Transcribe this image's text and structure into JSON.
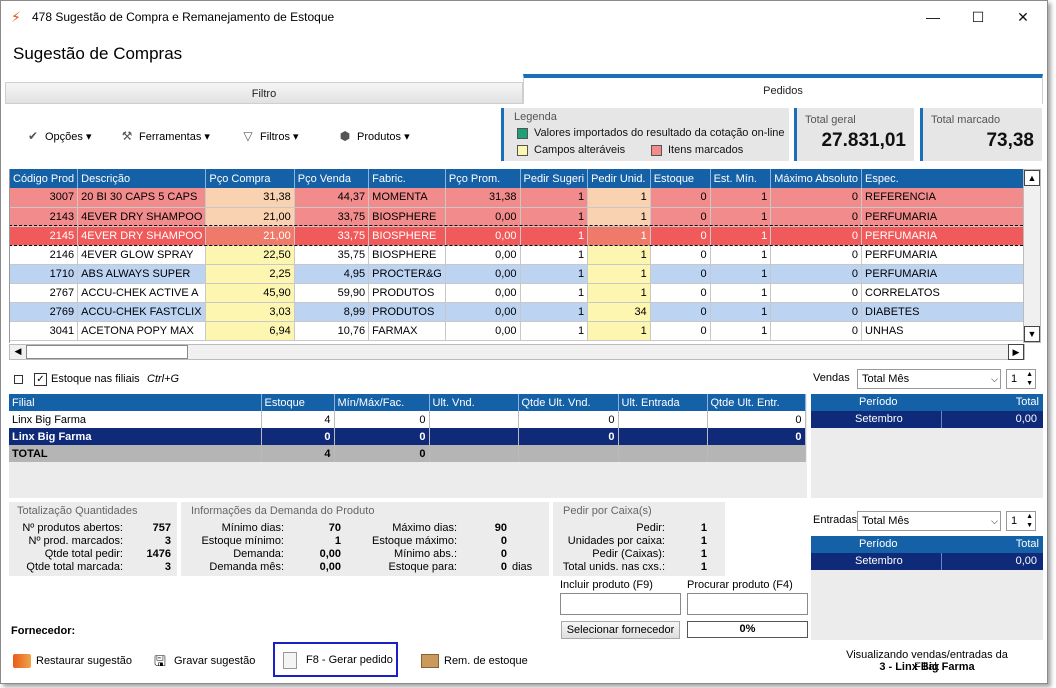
{
  "window": {
    "title": "478 Sugestão de Compra e Remanejamento de Estoque",
    "minimize": "—",
    "maximize": "☐",
    "close": "✕"
  },
  "header": {
    "title": "Sugestão de Compras"
  },
  "tabs": [
    {
      "label": "Filtro"
    },
    {
      "label": "Pedidos"
    }
  ],
  "toolbar": [
    {
      "label": "Opções",
      "icon": "check-icon"
    },
    {
      "label": "Ferramentas",
      "icon": "wrench-icon"
    },
    {
      "label": "Filtros",
      "icon": "funnel-icon"
    },
    {
      "label": "Produtos",
      "icon": "box-icon"
    }
  ],
  "legend": {
    "title": "Legenda",
    "items": [
      {
        "label": "Valores importados do resultado da cotação on-line",
        "color": "#1f9e78"
      },
      {
        "label": "Campos alteráveis",
        "color": "#fdf6b0"
      },
      {
        "label": "Itens marcados",
        "color": "#f28b8b"
      }
    ]
  },
  "totals": {
    "geral_label": "Total geral",
    "geral_value": "27.831,01",
    "marcado_label": "Total marcado",
    "marcado_value": "73,38"
  },
  "grid": {
    "columns": [
      "Código Prod",
      "Descrição",
      "Pço Compra",
      "Pço Venda",
      "Fabric.",
      "Pço Prom.",
      "Pedir Sugeri",
      "Pedir Unid.",
      "Estoque",
      "Est. Mín.",
      "Máximo Absoluto",
      "Espec."
    ],
    "rows": [
      {
        "style": "red",
        "cells": [
          "3007",
          "20 BI 30 CAPS 5 CAPS",
          "31,38",
          "44,37",
          "MOMENTA",
          "31,38",
          "1",
          "1",
          "0",
          "1",
          "0",
          "REFERENCIA"
        ]
      },
      {
        "style": "red",
        "cells": [
          "2143",
          "4EVER DRY SHAMPOO",
          "21,00",
          "33,75",
          "BIOSPHERE",
          "0,00",
          "1",
          "1",
          "0",
          "1",
          "0",
          "PERFUMARIA"
        ]
      },
      {
        "style": "sel",
        "cells": [
          "2145",
          "4EVER DRY SHAMPOO",
          "21,00",
          "33,75",
          "BIOSPHERE",
          "0,00",
          "1",
          "1",
          "0",
          "1",
          "0",
          "PERFUMARIA"
        ]
      },
      {
        "style": "white",
        "cells": [
          "2146",
          "4EVER GLOW SPRAY",
          "22,50",
          "35,75",
          "BIOSPHERE",
          "0,00",
          "1",
          "1",
          "0",
          "1",
          "0",
          "PERFUMARIA"
        ]
      },
      {
        "style": "blue",
        "cells": [
          "1710",
          "ABS ALWAYS SUPER",
          "2,25",
          "4,95",
          "PROCTER&G",
          "0,00",
          "1",
          "1",
          "0",
          "1",
          "0",
          "PERFUMARIA"
        ]
      },
      {
        "style": "white",
        "cells": [
          "2767",
          "ACCU-CHEK ACTIVE A",
          "45,90",
          "59,90",
          "PRODUTOS",
          "0,00",
          "1",
          "1",
          "0",
          "1",
          "0",
          "CORRELATOS"
        ]
      },
      {
        "style": "blue",
        "cells": [
          "2769",
          "ACCU-CHEK FASTCLIX",
          "3,03",
          "8,99",
          "PRODUTOS",
          "0,00",
          "1",
          "34",
          "0",
          "1",
          "0",
          "DIABETES"
        ]
      },
      {
        "style": "white",
        "cells": [
          "3041",
          "ACETONA POPY MAX",
          "6,94",
          "10,76",
          "FARMAX",
          "0,00",
          "1",
          "1",
          "0",
          "1",
          "0",
          "UNHAS"
        ]
      }
    ]
  },
  "options": {
    "estoque_filiais": "Estoque nas filiais",
    "shortcut": "Ctrl+G"
  },
  "filial_grid": {
    "columns": [
      "Filial",
      "Estoque",
      "Mín/Máx/Fac.",
      "Ult. Vnd.",
      "Qtde Ult. Vnd.",
      "Ult. Entrada",
      "Qtde Ult. Entr."
    ],
    "rows": [
      {
        "style": "white",
        "cells": [
          "Linx Big Farma",
          "4",
          "0",
          "",
          "0",
          "",
          "0"
        ]
      },
      {
        "style": "navy",
        "cells": [
          "Linx Big Farma",
          "0",
          "0",
          "",
          "0",
          "",
          "0"
        ]
      },
      {
        "style": "total",
        "cells": [
          "TOTAL",
          "4",
          "0",
          "",
          "",
          "",
          ""
        ]
      }
    ]
  },
  "vendas": {
    "label": "Vendas",
    "combo": "Total Mês",
    "spin": "1",
    "col_periodo": "Período",
    "col_total": "Total",
    "row_periodo": "Setembro",
    "row_total": "0,00"
  },
  "entradas": {
    "label": "Entradas",
    "combo": "Total Mês",
    "spin": "1",
    "col_periodo": "Período",
    "col_total": "Total",
    "row_periodo": "Setembro",
    "row_total": "0,00"
  },
  "totalizacao": {
    "title": "Totalização Quantidades",
    "items": [
      {
        "label": "Nº produtos abertos:",
        "value": "757"
      },
      {
        "label": "Nº prod. marcados:",
        "value": "3"
      },
      {
        "label": "Qtde total pedir:",
        "value": "1476"
      },
      {
        "label": "Qtde total marcada:",
        "value": "3"
      }
    ]
  },
  "demanda": {
    "title": "Informações da Demanda do Produto",
    "left": [
      {
        "label": "Mínimo dias:",
        "value": "70"
      },
      {
        "label": "Estoque mínimo:",
        "value": "1"
      },
      {
        "label": "Demanda:",
        "value": "0,00"
      },
      {
        "label": "Demanda mês:",
        "value": "0,00"
      }
    ],
    "right": [
      {
        "label": "Máximo dias:",
        "value": "90"
      },
      {
        "label": "Estoque máximo:",
        "value": "0"
      },
      {
        "label": "Mínimo abs.:",
        "value": "0"
      },
      {
        "label": "Estoque para:",
        "value": "0"
      }
    ],
    "dias": "dias"
  },
  "caixa": {
    "title": "Pedir por Caixa(s)",
    "items": [
      {
        "label": "Pedir:",
        "value": "1"
      },
      {
        "label": "Unidades por caixa:",
        "value": "1"
      },
      {
        "label": "Pedir (Caixas):",
        "value": "1"
      },
      {
        "label": "Total unids. nas cxs.:",
        "value": "1"
      }
    ]
  },
  "incluir": {
    "label": "Incluir produto (F9)"
  },
  "procurar": {
    "label": "Procurar produto (F4)"
  },
  "selecionar_btn": "Selecionar fornecedor",
  "progress": {
    "text": "0%",
    "value": 0
  },
  "fornecedor_label": "Fornecedor:",
  "actions": [
    {
      "label": "Restaurar sugestão",
      "icon": "restore-icon"
    },
    {
      "label": "Gravar sugestão",
      "icon": "save-icon"
    },
    {
      "label": "F8 - Gerar pedido",
      "icon": "document-icon"
    },
    {
      "label": "Rem. de estoque",
      "icon": "boxes-icon"
    }
  ],
  "status": {
    "line1": "Visualizando vendas/entradas da Filial:",
    "line2": "3 - Linx Big Farma"
  }
}
